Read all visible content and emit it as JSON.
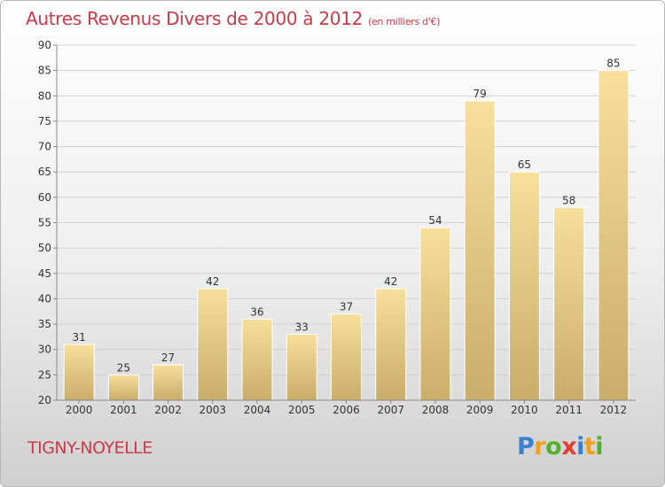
{
  "header": {
    "title": "Autres Revenus Divers de 2000 à 2012",
    "unit": "(en milliers d'€)"
  },
  "footer": {
    "commune": "TIGNY-NOYELLE",
    "logo_letters": [
      {
        "char": "P",
        "color": "#3b7fd3"
      },
      {
        "char": "r",
        "color": "#f0a01c"
      },
      {
        "char": "o",
        "color": "#56b030"
      },
      {
        "char": "x",
        "color": "#e33d2f"
      },
      {
        "char": "i",
        "color": "#3b7fd3"
      },
      {
        "char": "t",
        "color": "#f0a01c"
      },
      {
        "char": "i",
        "color": "#56b030"
      }
    ]
  },
  "chart_data": {
    "type": "bar",
    "categories": [
      "2000",
      "2001",
      "2002",
      "2003",
      "2004",
      "2005",
      "2006",
      "2007",
      "2008",
      "2009",
      "2010",
      "2011",
      "2012"
    ],
    "values": [
      31,
      25,
      27,
      42,
      36,
      33,
      37,
      42,
      54,
      79,
      65,
      58,
      85
    ],
    "title": "Autres Revenus Divers de 2000 à 2012",
    "subtitle": "(en milliers d'€)",
    "ylim": [
      20,
      90
    ],
    "yticks": [
      20,
      25,
      30,
      35,
      40,
      45,
      50,
      55,
      60,
      65,
      70,
      75,
      80,
      85,
      90
    ],
    "grid": true,
    "legend": "none",
    "colors": {
      "bar_top": "#f7df9c",
      "bar_bottom": "#c9ad6a",
      "grid": "#d0d0d0",
      "axis": "#888888",
      "text": "#333333",
      "title": "#ca3a48"
    }
  }
}
